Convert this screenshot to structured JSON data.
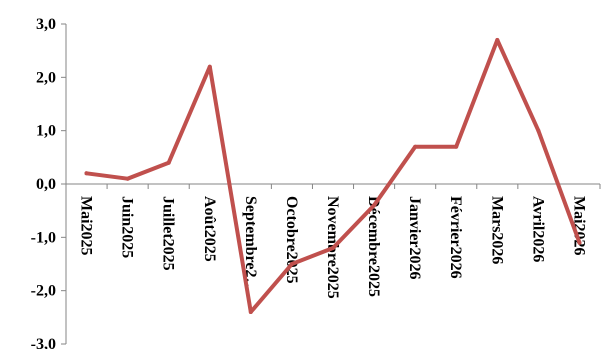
{
  "chart_data": {
    "type": "line",
    "categories": [
      "Mai2025",
      "Juin2025",
      "Juillet2025",
      "Août2025",
      "Septembre2…",
      "Octobre2025",
      "Novembre2025",
      "Décembre2025",
      "Janvier2026",
      "Février2026",
      "Mars2026",
      "Avril2026",
      "Mai2026"
    ],
    "series": [
      {
        "values": [
          0.2,
          0.1,
          0.4,
          2.2,
          -2.4,
          -1.5,
          -1.2,
          -0.4,
          0.7,
          0.7,
          2.7,
          1.0,
          -1.1
        ]
      }
    ],
    "ylim": [
      -3.0,
      3.0
    ],
    "yticks": [
      "3,0",
      "2,0",
      "1,0",
      "0,0",
      "-1,0",
      "-2,0",
      "-3,0"
    ],
    "ytick_values": [
      3,
      2,
      1,
      0,
      -1,
      -2,
      -3
    ],
    "grid": false,
    "line_color": "#c0504d",
    "axis_color": "#868686"
  }
}
